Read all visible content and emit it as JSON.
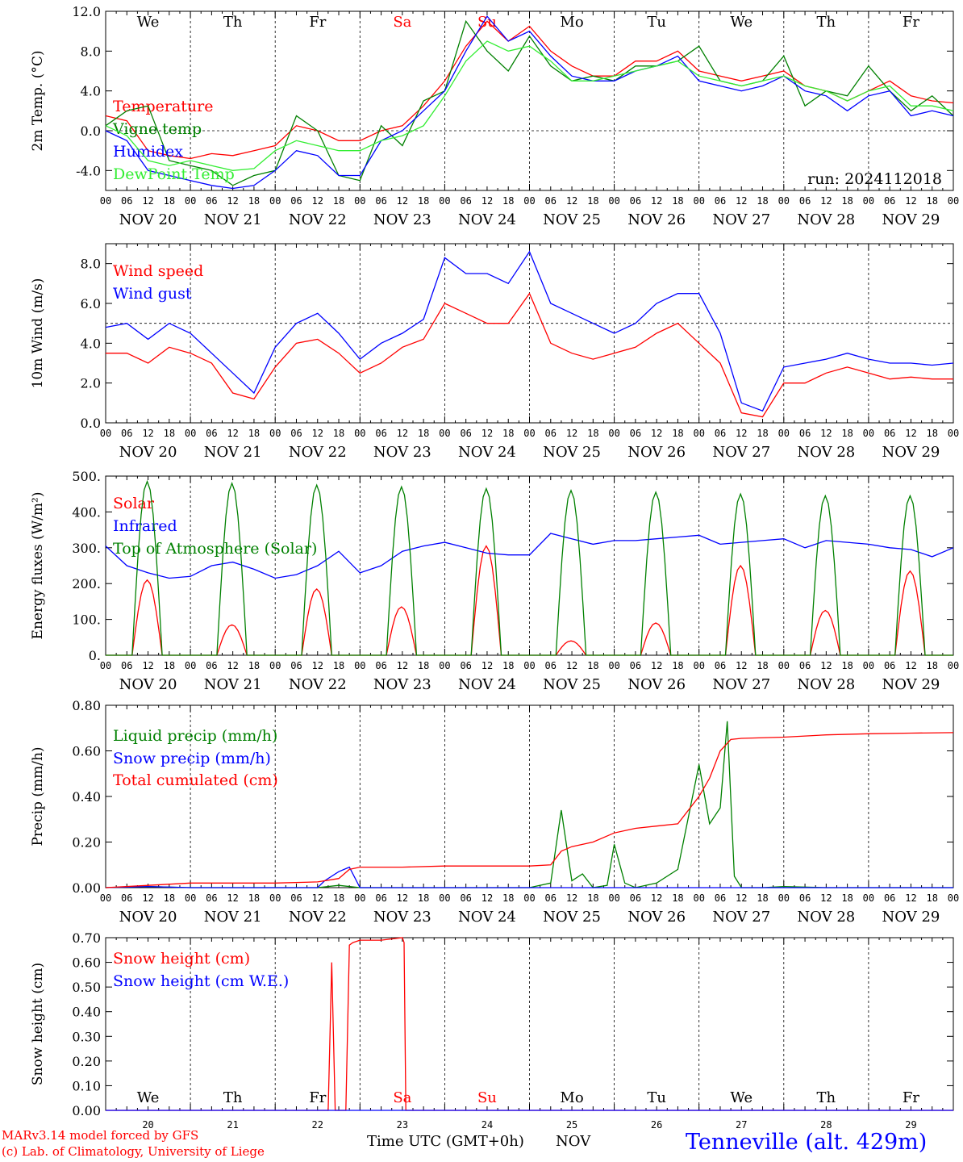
{
  "colors": {
    "red": "#ff0000",
    "green": "#008000",
    "blue": "#0000ff",
    "lightgreen": "#33ee33",
    "axis": "#000000"
  },
  "days": [
    {
      "abbr": "We",
      "date": "NOV 20",
      "num": "20",
      "color": "#000000"
    },
    {
      "abbr": "Th",
      "date": "NOV 21",
      "num": "21",
      "color": "#000000"
    },
    {
      "abbr": "Fr",
      "date": "NOV 22",
      "num": "22",
      "color": "#000000"
    },
    {
      "abbr": "Sa",
      "date": "NOV 23",
      "num": "23",
      "color": "#ff0000"
    },
    {
      "abbr": "Su",
      "date": "NOV 24",
      "num": "24",
      "color": "#ff0000"
    },
    {
      "abbr": "Mo",
      "date": "NOV 25",
      "num": "25",
      "color": "#000000"
    },
    {
      "abbr": "Tu",
      "date": "NOV 26",
      "num": "26",
      "color": "#000000"
    },
    {
      "abbr": "We",
      "date": "NOV 27",
      "num": "27",
      "color": "#000000"
    },
    {
      "abbr": "Th",
      "date": "NOV 28",
      "num": "28",
      "color": "#000000"
    },
    {
      "abbr": "Fr",
      "date": "NOV 29",
      "num": "29",
      "color": "#000000"
    }
  ],
  "hour_ticks": [
    "00",
    "06",
    "12",
    "18"
  ],
  "end_tick": "00",
  "run_label": "run: 2024112018",
  "footer": {
    "model": "MARv3.14 model forced by GFS",
    "lab": "(c) Lab. of Climatology, University of Liege",
    "xlabel": "Time UTC (GMT+0h)",
    "month": "NOV",
    "station": "Tenneville (alt. 429m)"
  },
  "chart_data": [
    {
      "type": "line",
      "ylabel": "2m Temp. (°C)",
      "ylim": [
        -6.0,
        12.0
      ],
      "yticks": [
        "-4.0",
        "0.0",
        "4.0",
        "8.0",
        "12.0"
      ],
      "ytick_values": [
        -4,
        0,
        4,
        8,
        12
      ],
      "refline": 0,
      "x_unit": "hours since NOV 20 00 UTC",
      "series": [
        {
          "name": "Temperature",
          "color": "#ff0000",
          "x": [
            0,
            6,
            12,
            18,
            24,
            30,
            36,
            42,
            48,
            54,
            60,
            66,
            72,
            78,
            84,
            90,
            96,
            102,
            108,
            114,
            120,
            126,
            132,
            138,
            144,
            150,
            156,
            162,
            168,
            174,
            180,
            186,
            192,
            198,
            204,
            210,
            216,
            222,
            228,
            234,
            240
          ],
          "y": [
            1.5,
            1.0,
            -2.0,
            -2.5,
            -2.8,
            -2.3,
            -2.5,
            -2.0,
            -1.5,
            0.5,
            0.0,
            -1.0,
            -1.0,
            0.0,
            0.5,
            2.5,
            5.0,
            8.5,
            11.0,
            9.0,
            10.5,
            8.0,
            6.5,
            5.5,
            5.5,
            7.0,
            7.0,
            8.0,
            6.0,
            5.5,
            5.0,
            5.5,
            6.0,
            4.5,
            4.0,
            3.0,
            4.0,
            5.0,
            3.5,
            3.0,
            2.8
          ]
        },
        {
          "name": "Vigne temp",
          "color": "#008000",
          "x": [
            0,
            6,
            12,
            18,
            24,
            30,
            36,
            42,
            48,
            54,
            60,
            66,
            72,
            78,
            84,
            90,
            96,
            102,
            108,
            114,
            120,
            126,
            132,
            138,
            144,
            150,
            156,
            162,
            168,
            174,
            180,
            186,
            192,
            198,
            204,
            210,
            216,
            222,
            228,
            234,
            240
          ],
          "y": [
            0.5,
            2.0,
            2.5,
            -3.0,
            -3.5,
            -4.0,
            -5.5,
            -4.5,
            -4.0,
            1.5,
            0.0,
            -4.5,
            -5.0,
            0.5,
            -1.5,
            3.0,
            4.0,
            11.0,
            8.0,
            6.0,
            9.5,
            6.5,
            5.0,
            5.5,
            5.0,
            6.5,
            6.5,
            7.0,
            8.5,
            5.0,
            4.5,
            5.0,
            7.5,
            2.5,
            4.0,
            3.5,
            6.5,
            4.0,
            2.0,
            3.5,
            1.5
          ]
        },
        {
          "name": "Humidex",
          "color": "#0000ff",
          "x": [
            0,
            6,
            12,
            18,
            24,
            30,
            36,
            42,
            48,
            54,
            60,
            66,
            72,
            78,
            84,
            90,
            96,
            102,
            108,
            114,
            120,
            126,
            132,
            138,
            144,
            150,
            156,
            162,
            168,
            174,
            180,
            186,
            192,
            198,
            204,
            210,
            216,
            222,
            228,
            234,
            240
          ],
          "y": [
            0.0,
            -1.0,
            -4.0,
            -4.5,
            -5.0,
            -5.5,
            -5.8,
            -5.5,
            -4.0,
            -2.0,
            -2.5,
            -4.5,
            -4.5,
            -1.0,
            0.0,
            2.0,
            4.0,
            8.0,
            11.5,
            9.0,
            10.0,
            7.5,
            5.5,
            5.0,
            5.0,
            6.0,
            6.5,
            7.5,
            5.0,
            4.5,
            4.0,
            4.5,
            5.5,
            4.0,
            3.5,
            2.0,
            3.5,
            4.0,
            1.5,
            2.0,
            1.5
          ]
        },
        {
          "name": "DewPoint Temp",
          "color": "#33ee33",
          "x": [
            0,
            6,
            12,
            18,
            24,
            30,
            36,
            42,
            48,
            54,
            60,
            66,
            72,
            78,
            84,
            90,
            96,
            102,
            108,
            114,
            120,
            126,
            132,
            138,
            144,
            150,
            156,
            162,
            168,
            174,
            180,
            186,
            192,
            198,
            204,
            210,
            216,
            222,
            228,
            234,
            240
          ],
          "y": [
            0.5,
            -0.5,
            -3.0,
            -3.5,
            -3.0,
            -3.5,
            -4.0,
            -3.8,
            -2.0,
            -1.0,
            -1.5,
            -2.0,
            -2.0,
            -1.0,
            -0.5,
            0.5,
            3.5,
            7.0,
            9.0,
            8.0,
            8.5,
            7.0,
            5.0,
            5.0,
            5.5,
            6.0,
            6.5,
            7.0,
            5.5,
            5.0,
            4.5,
            5.0,
            5.5,
            4.5,
            4.0,
            3.0,
            4.0,
            4.5,
            2.5,
            2.5,
            2.0
          ]
        }
      ]
    },
    {
      "type": "line",
      "ylabel": "10m Wind (m/s)",
      "ylim": [
        0.0,
        9.0
      ],
      "yticks": [
        "0.0",
        "2.0",
        "4.0",
        "6.0",
        "8.0"
      ],
      "ytick_values": [
        0,
        2,
        4,
        6,
        8
      ],
      "refline": 5,
      "series": [
        {
          "name": "Wind speed",
          "color": "#ff0000",
          "x": [
            0,
            6,
            12,
            18,
            24,
            30,
            36,
            42,
            48,
            54,
            60,
            66,
            72,
            78,
            84,
            90,
            96,
            102,
            108,
            114,
            120,
            126,
            132,
            138,
            144,
            150,
            156,
            162,
            168,
            174,
            180,
            186,
            192,
            198,
            204,
            210,
            216,
            222,
            228,
            234,
            240
          ],
          "y": [
            3.5,
            3.5,
            3.0,
            3.8,
            3.5,
            3.0,
            1.5,
            1.2,
            2.8,
            4.0,
            4.2,
            3.5,
            2.5,
            3.0,
            3.8,
            4.2,
            6.0,
            5.5,
            5.0,
            5.0,
            6.5,
            4.0,
            3.5,
            3.2,
            3.5,
            3.8,
            4.5,
            5.0,
            4.0,
            3.0,
            0.5,
            0.3,
            2.0,
            2.0,
            2.5,
            2.8,
            2.5,
            2.2,
            2.3,
            2.2,
            2.2
          ]
        },
        {
          "name": "Wind gust",
          "color": "#0000ff",
          "x": [
            0,
            6,
            12,
            18,
            24,
            30,
            36,
            42,
            48,
            54,
            60,
            66,
            72,
            78,
            84,
            90,
            96,
            102,
            108,
            114,
            120,
            126,
            132,
            138,
            144,
            150,
            156,
            162,
            168,
            174,
            180,
            186,
            192,
            198,
            204,
            210,
            216,
            222,
            228,
            234,
            240
          ],
          "y": [
            4.8,
            5.0,
            4.2,
            5.0,
            4.5,
            3.5,
            2.5,
            1.5,
            3.8,
            5.0,
            5.5,
            4.5,
            3.2,
            4.0,
            4.5,
            5.2,
            8.3,
            7.5,
            7.5,
            7.0,
            8.6,
            6.0,
            5.5,
            5.0,
            4.5,
            5.0,
            6.0,
            6.5,
            6.5,
            4.5,
            1.0,
            0.6,
            2.8,
            3.0,
            3.2,
            3.5,
            3.2,
            3.0,
            3.0,
            2.9,
            3.0
          ]
        }
      ]
    },
    {
      "type": "line",
      "ylabel": "Energy fluxes (W/m²)",
      "ylim": [
        0,
        500
      ],
      "yticks": [
        "0.",
        "100.",
        "200.",
        "300.",
        "400.",
        "500."
      ],
      "ytick_values": [
        0,
        100,
        200,
        300,
        400,
        500
      ],
      "series": [
        {
          "name": "Solar",
          "color": "#ff0000",
          "peaks": [
            210,
            85,
            185,
            135,
            305,
            40,
            90,
            250,
            125,
            235
          ]
        },
        {
          "name": "Infrared",
          "color": "#0000ff",
          "x": [
            0,
            6,
            12,
            18,
            24,
            30,
            36,
            42,
            48,
            54,
            60,
            66,
            72,
            78,
            84,
            90,
            96,
            102,
            108,
            114,
            120,
            126,
            132,
            138,
            144,
            150,
            156,
            162,
            168,
            174,
            180,
            186,
            192,
            198,
            204,
            210,
            216,
            222,
            228,
            234,
            240
          ],
          "y": [
            305,
            250,
            230,
            215,
            220,
            250,
            260,
            240,
            215,
            225,
            250,
            290,
            230,
            250,
            290,
            305,
            315,
            300,
            285,
            280,
            280,
            340,
            325,
            310,
            320,
            320,
            325,
            330,
            335,
            310,
            315,
            320,
            325,
            300,
            320,
            315,
            310,
            300,
            295,
            275,
            300
          ]
        },
        {
          "name": "Top of Atmosphere (Solar)",
          "color": "#008000",
          "peaks": [
            485,
            480,
            475,
            470,
            465,
            460,
            455,
            450,
            445,
            445
          ]
        }
      ],
      "daylight_hours": [
        7.5,
        16.0
      ]
    },
    {
      "type": "line",
      "ylabel": "Precip (mm/h)",
      "ylim": [
        0.0,
        0.8
      ],
      "yticks": [
        "0.00",
        "0.20",
        "0.40",
        "0.60",
        "0.80"
      ],
      "ytick_values": [
        0,
        0.2,
        0.4,
        0.6,
        0.8
      ],
      "series": [
        {
          "name": "Liquid precip (mm/h)",
          "color": "#008000",
          "x": [
            0,
            12,
            24,
            36,
            48,
            60,
            66,
            72,
            84,
            96,
            108,
            120,
            126,
            129,
            132,
            135,
            138,
            142,
            144,
            147,
            150,
            156,
            162,
            168,
            171,
            174,
            176,
            178,
            180,
            186,
            192,
            204,
            216,
            228,
            240
          ],
          "y": [
            0,
            0.005,
            0,
            0,
            0,
            0,
            0.01,
            0,
            0,
            0,
            0,
            0,
            0.02,
            0.34,
            0.03,
            0.06,
            0,
            0.01,
            0.19,
            0.02,
            0,
            0.02,
            0.08,
            0.54,
            0.28,
            0.35,
            0.73,
            0.05,
            0,
            0,
            0.005,
            0,
            0,
            0,
            0
          ]
        },
        {
          "name": "Snow precip (mm/h)",
          "color": "#0000ff",
          "x": [
            0,
            12,
            24,
            36,
            48,
            60,
            62,
            66,
            69,
            72,
            84,
            96,
            108,
            120,
            132,
            144,
            156,
            168,
            180,
            192,
            204,
            216,
            228,
            240
          ],
          "y": [
            0,
            0.005,
            0,
            0,
            0,
            0,
            0.03,
            0.07,
            0.09,
            0,
            0,
            0,
            0,
            0,
            0,
            0,
            0,
            0,
            0,
            0,
            0,
            0,
            0,
            0
          ]
        },
        {
          "name": "Total cumulated (cm)",
          "color": "#ff0000",
          "x": [
            0,
            12,
            24,
            36,
            48,
            60,
            66,
            69,
            72,
            84,
            96,
            108,
            120,
            126,
            129,
            132,
            138,
            144,
            150,
            156,
            162,
            168,
            171,
            174,
            177,
            180,
            192,
            204,
            216,
            228,
            240
          ],
          "y": [
            0,
            0.01,
            0.02,
            0.02,
            0.02,
            0.025,
            0.04,
            0.08,
            0.09,
            0.09,
            0.095,
            0.095,
            0.095,
            0.1,
            0.16,
            0.18,
            0.2,
            0.24,
            0.26,
            0.27,
            0.28,
            0.4,
            0.48,
            0.6,
            0.65,
            0.655,
            0.66,
            0.67,
            0.675,
            0.678,
            0.68
          ]
        }
      ]
    },
    {
      "type": "line",
      "ylabel": "Snow height (cm)",
      "ylim": [
        0.0,
        0.7
      ],
      "yticks": [
        "0.00",
        "0.10",
        "0.20",
        "0.30",
        "0.40",
        "0.50",
        "0.60",
        "0.70"
      ],
      "ytick_values": [
        0,
        0.1,
        0.2,
        0.3,
        0.4,
        0.5,
        0.6,
        0.7
      ],
      "series": [
        {
          "name": "Snow height (cm)",
          "color": "#ff0000",
          "x": [
            0,
            63,
            64,
            65,
            66,
            67,
            68,
            69,
            70,
            72,
            78,
            84,
            84.5,
            85,
            240
          ],
          "y": [
            0,
            0,
            0.6,
            0,
            0,
            0,
            0,
            0.67,
            0.68,
            0.69,
            0.69,
            0.7,
            0.68,
            0,
            0
          ]
        },
        {
          "name": "Snow height (cm W.E.)",
          "color": "#0000ff",
          "x": [
            0,
            240
          ],
          "y": [
            0,
            0
          ]
        }
      ]
    }
  ]
}
